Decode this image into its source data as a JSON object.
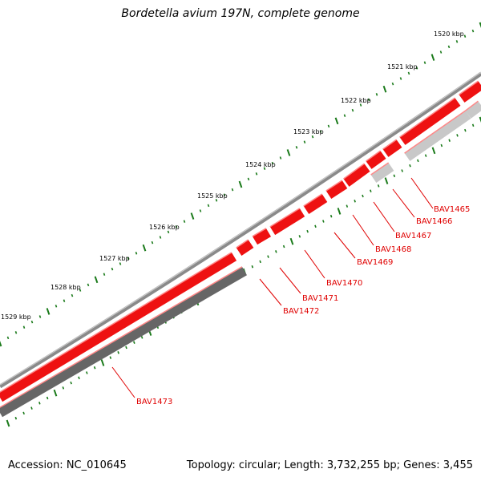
{
  "title": "Bordetella avium 197N, complete genome",
  "accession_text": "Accession: NC_010645",
  "summary_text": "Topology: circular; Length: 3,732,255 bp; Genes: 3,455",
  "colors": {
    "backbone": "#888888",
    "forward_gene": "#ee1111",
    "reverse_gene_light": "#c8c8c8",
    "reverse_gene_dark": "#666666",
    "ticks": "#1a7a1a",
    "label": "#e00000"
  },
  "kbp_labels": [
    "1520 kbp",
    "1521 kbp",
    "1522 kbp",
    "1523 kbp",
    "1524 kbp",
    "1525 kbp",
    "1526 kbp",
    "1527 kbp",
    "1528 kbp",
    "1529 kbp"
  ],
  "genes": [
    {
      "label": "BAV1465"
    },
    {
      "label": "BAV1466"
    },
    {
      "label": "BAV1467"
    },
    {
      "label": "BAV1468"
    },
    {
      "label": "BAV1469"
    },
    {
      "label": "BAV1470"
    },
    {
      "label": "BAV1471"
    },
    {
      "label": "BAV1472"
    },
    {
      "label": "BAV1473"
    }
  ]
}
